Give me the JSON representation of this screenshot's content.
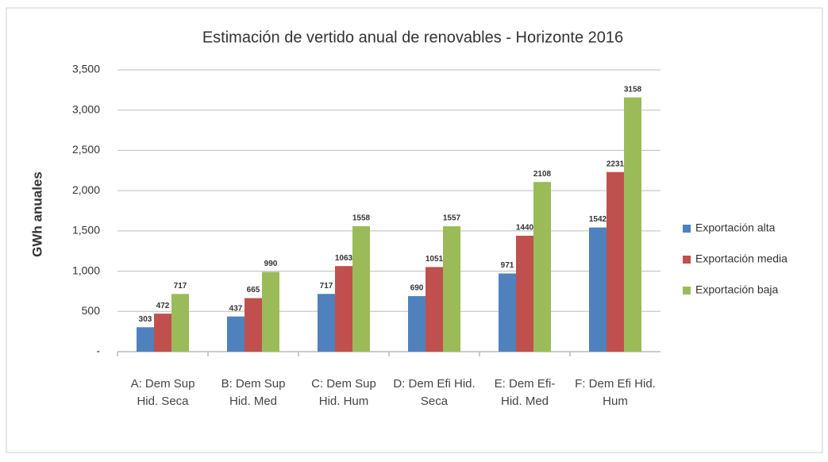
{
  "chart_data": {
    "type": "bar",
    "title": "Estimación de vertido anual de renovables - Horizonte 2016",
    "y_label": "GWh anuales",
    "categories": [
      "A: Dem Sup Hid. Seca",
      "B: Dem Sup Hid. Med",
      "C: Dem Sup Hid. Hum",
      "D: Dem Efi Hid. Seca",
      "E: Dem Efi- Hid. Med",
      "F: Dem Efi Hid. Hum"
    ],
    "series": [
      {
        "name": "Exportación alta",
        "color": "#4f81bd",
        "values": [
          303,
          437,
          717,
          690,
          971,
          1542
        ]
      },
      {
        "name": "Exportación media",
        "color": "#c0504d",
        "values": [
          472,
          665,
          1063,
          1051,
          1440,
          2231
        ]
      },
      {
        "name": "Exportación baja",
        "color": "#9bbb59",
        "values": [
          717,
          990,
          1558,
          1557,
          2108,
          3158
        ]
      }
    ],
    "ylim": [
      0,
      3500
    ],
    "yticks": [
      {
        "value": 0,
        "label": "-"
      },
      500,
      {
        "value": 1000,
        "label": "1,000"
      },
      {
        "value": 1500,
        "label": "1,500"
      },
      {
        "value": 2000,
        "label": "2,000"
      },
      {
        "value": 2500,
        "label": "2,500"
      },
      {
        "value": 3000,
        "label": "3,000"
      },
      {
        "value": 3500,
        "label": "3,500"
      }
    ],
    "grid": true,
    "legend": "right"
  }
}
